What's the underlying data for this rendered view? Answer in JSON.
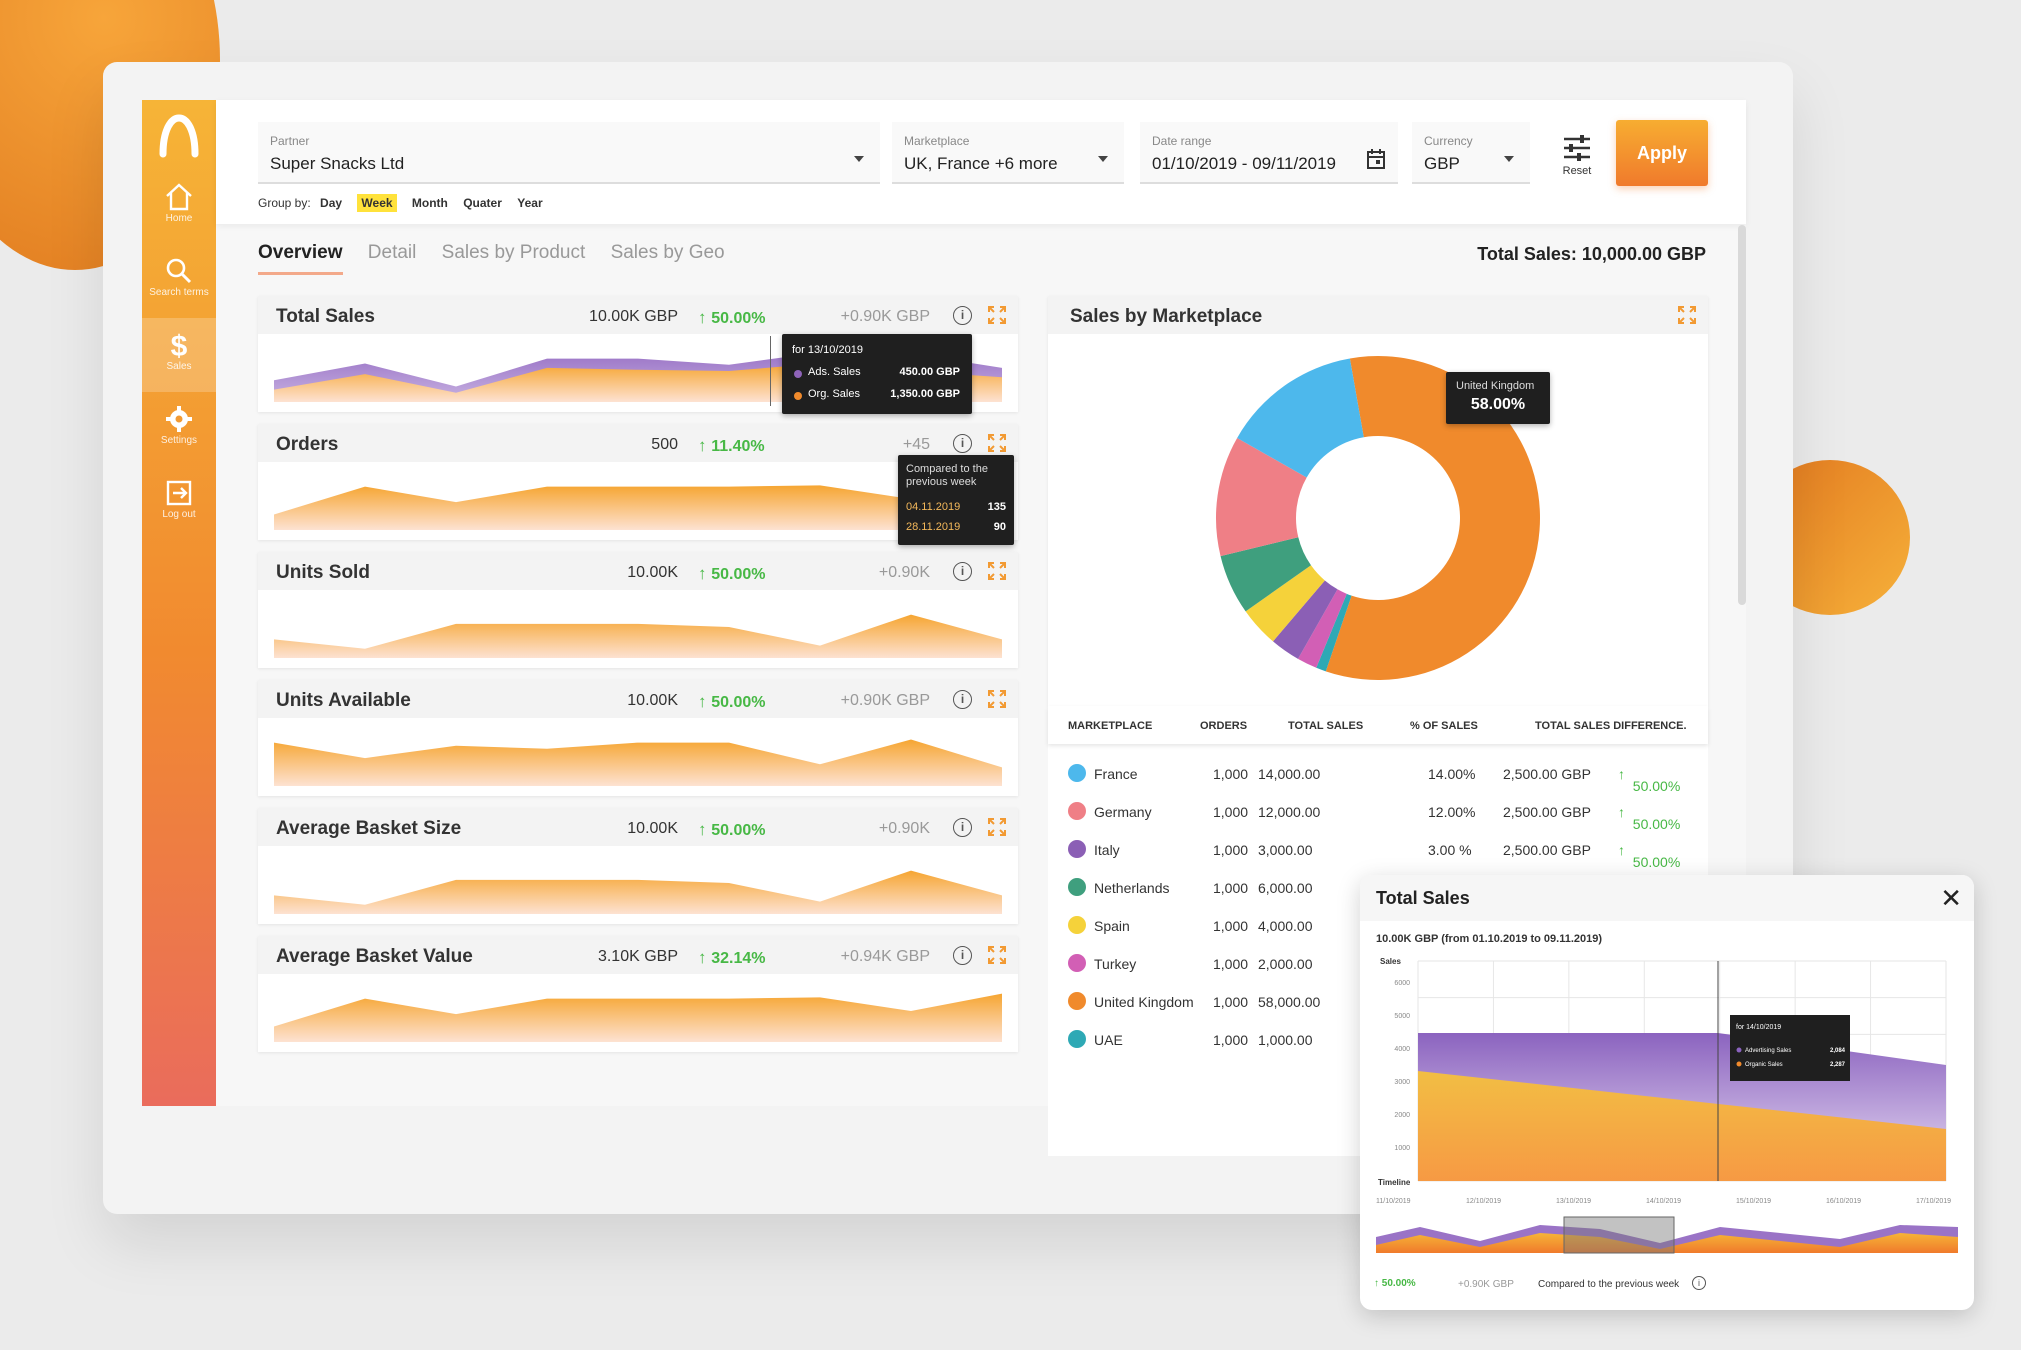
{
  "filters": {
    "partner": {
      "caption": "Partner",
      "value": "Super Snacks Ltd"
    },
    "marketplace": {
      "caption": "Marketplace",
      "value": "UK, France +6 more"
    },
    "daterange": {
      "caption": "Date range",
      "value": "01/10/2019 - 09/11/2019"
    },
    "currency": {
      "caption": "Currency",
      "value": "GBP"
    },
    "reset_label": "Reset",
    "apply_label": "Apply",
    "group_by_label": "Group by:",
    "group_by": [
      "Day",
      "Week",
      "Month",
      "Quater",
      "Year"
    ],
    "group_by_selected": "Week"
  },
  "sidebar": {
    "items": [
      {
        "label": "Home",
        "icon": "home-icon"
      },
      {
        "label": "Search terms",
        "icon": "search-icon"
      },
      {
        "label": "Sales",
        "icon": "dollar-icon"
      },
      {
        "label": "Settings",
        "icon": "gear-icon"
      },
      {
        "label": "Log out",
        "icon": "logout-icon"
      }
    ],
    "active": "Sales"
  },
  "tabs": [
    "Overview",
    "Detail",
    "Sales by Product",
    "Sales by Geo"
  ],
  "active_tab": "Overview",
  "total_sales_header": "Total Sales: 10,000.00 GBP",
  "metrics": [
    {
      "name": "Total Sales",
      "value": "10.00K GBP",
      "pct": "50.00%",
      "diff": "+0.90K GBP"
    },
    {
      "name": "Orders",
      "value": "500",
      "pct": "11.40%",
      "diff": "+45"
    },
    {
      "name": "Units Sold",
      "value": "10.00K",
      "pct": "50.00%",
      "diff": "+0.90K"
    },
    {
      "name": "Units Available",
      "value": "10.00K",
      "pct": "50.00%",
      "diff": "+0.90K GBP"
    },
    {
      "name": "Average Basket Size",
      "value": "10.00K",
      "pct": "50.00%",
      "diff": "+0.90K"
    },
    {
      "name": "Average Basket Value",
      "value": "3.10K GBP",
      "pct": "32.14%",
      "diff": "+0.94K GBP"
    }
  ],
  "tooltip_sales": {
    "title": "for 13/10/2019",
    "rows": [
      {
        "label": "Ads. Sales",
        "value": "450.00 GBP",
        "color": "#8e63b8"
      },
      {
        "label": "Org. Sales",
        "value": "1,350.00 GBP",
        "color": "#f08a2c"
      }
    ]
  },
  "tooltip_orders": {
    "title": "Compared to the previous week",
    "rows": [
      {
        "label": "04.11.2019",
        "value": "135"
      },
      {
        "label": "28.11.2019",
        "value": "90"
      }
    ]
  },
  "donut": {
    "title": "Sales by Marketplace",
    "tooltip_label": "United Kingdom",
    "tooltip_value": "58.00%"
  },
  "marketplace_table": {
    "headers": [
      "MARKETPLACE",
      "ORDERS",
      "TOTAL SALES",
      "% OF SALES",
      "TOTAL SALES DIFFERENCE."
    ],
    "rows": [
      {
        "name": "France",
        "orders": "1,000",
        "sales": "14,000.00",
        "pct": "14.00%",
        "diff": "2,500.00 GBP",
        "change": "50.00%",
        "color": "#4db8ec"
      },
      {
        "name": "Germany",
        "orders": "1,000",
        "sales": "12,000.00",
        "pct": "12.00%",
        "diff": "2,500.00 GBP",
        "change": "50.00%",
        "color": "#ef7f86"
      },
      {
        "name": "Italy",
        "orders": "1,000",
        "sales": "3,000.00",
        "pct": "3.00  %",
        "diff": "2,500.00 GBP",
        "change": "50.00%",
        "color": "#8b5fb5"
      },
      {
        "name": "Netherlands",
        "orders": "1,000",
        "sales": "6,000.00",
        "color": "#3f9f7e"
      },
      {
        "name": "Spain",
        "orders": "1,000",
        "sales": "4,000.00",
        "color": "#f5d23a"
      },
      {
        "name": "Turkey",
        "orders": "1,000",
        "sales": "2,000.00",
        "color": "#d25fb5"
      },
      {
        "name": "United Kingdom",
        "orders": "1,000",
        "sales": "58,000.00",
        "color": "#f08a2c"
      },
      {
        "name": "UAE",
        "orders": "1,000",
        "sales": "1,000.00",
        "color": "#2ea9b5"
      }
    ]
  },
  "popup": {
    "title": "Total Sales",
    "subtitle": "10.00K GBP (from 01.10.2019 to 09.11.2019)",
    "y_label": "Sales",
    "y_ticks": [
      "6000",
      "5000",
      "4000",
      "3000",
      "2000",
      "1000"
    ],
    "x_label": "Timeline",
    "x_ticks": [
      "11/10/2019",
      "12/10/2019",
      "13/10/2019",
      "14/10/2019",
      "15/10/2019",
      "16/10/2019",
      "17/10/2019"
    ],
    "tooltip_title": "for 14/10/2019",
    "tooltip_rows": [
      {
        "label": "Advertising Sales",
        "value": "2,084"
      },
      {
        "label": "Organic Sales",
        "value": "2,287"
      }
    ],
    "footer_pct": "50.00%",
    "footer_diff": "+0.90K GBP",
    "footer_note": "Compared to  the previous week"
  },
  "chart_data": {
    "type": "pie",
    "categories": [
      "France",
      "Germany",
      "Italy",
      "Netherlands",
      "Spain",
      "Turkey",
      "United Kingdom",
      "UAE"
    ],
    "values": [
      14,
      12,
      3,
      6,
      4,
      2,
      58,
      1
    ],
    "colors": [
      "#4db8ec",
      "#ef7f86",
      "#8b5fb5",
      "#3f9f7e",
      "#f5d23a",
      "#d25fb5",
      "#f08a2c",
      "#2ea9b5"
    ],
    "title": "Sales by Marketplace"
  }
}
